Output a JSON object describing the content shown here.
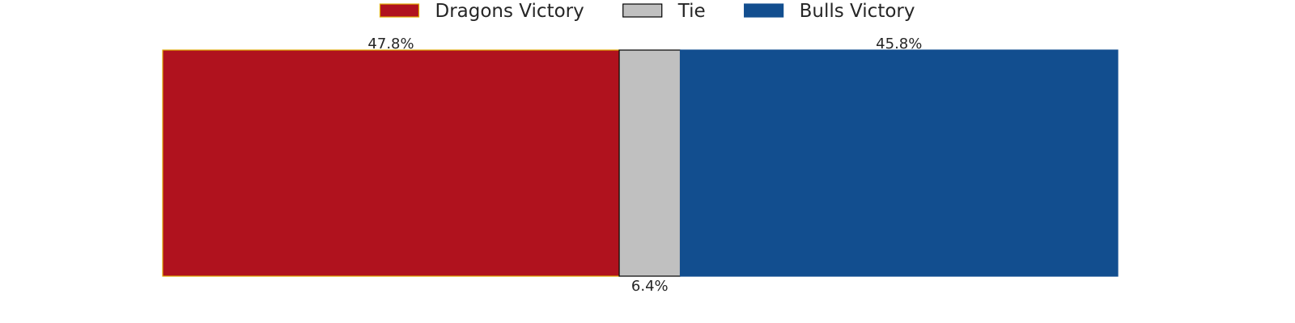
{
  "chart_data": {
    "type": "bar",
    "orientation": "horizontal-stacked",
    "title": "",
    "xlabel": "",
    "ylabel": "",
    "grid": false,
    "legend_position": "top-center",
    "series": [
      {
        "name": "Dragons Victory",
        "value": 47.8,
        "label": "47.8%",
        "color": "#b0121e",
        "edge": "#e0a800",
        "label_position": "above"
      },
      {
        "name": "Tie",
        "value": 6.4,
        "label": "6.4%",
        "color": "#c0c0c0",
        "edge": "#000000",
        "label_position": "below"
      },
      {
        "name": "Bulls Victory",
        "value": 45.8,
        "label": "45.8%",
        "color": "#124e8f",
        "edge": "#124e8f",
        "label_position": "above"
      }
    ]
  }
}
